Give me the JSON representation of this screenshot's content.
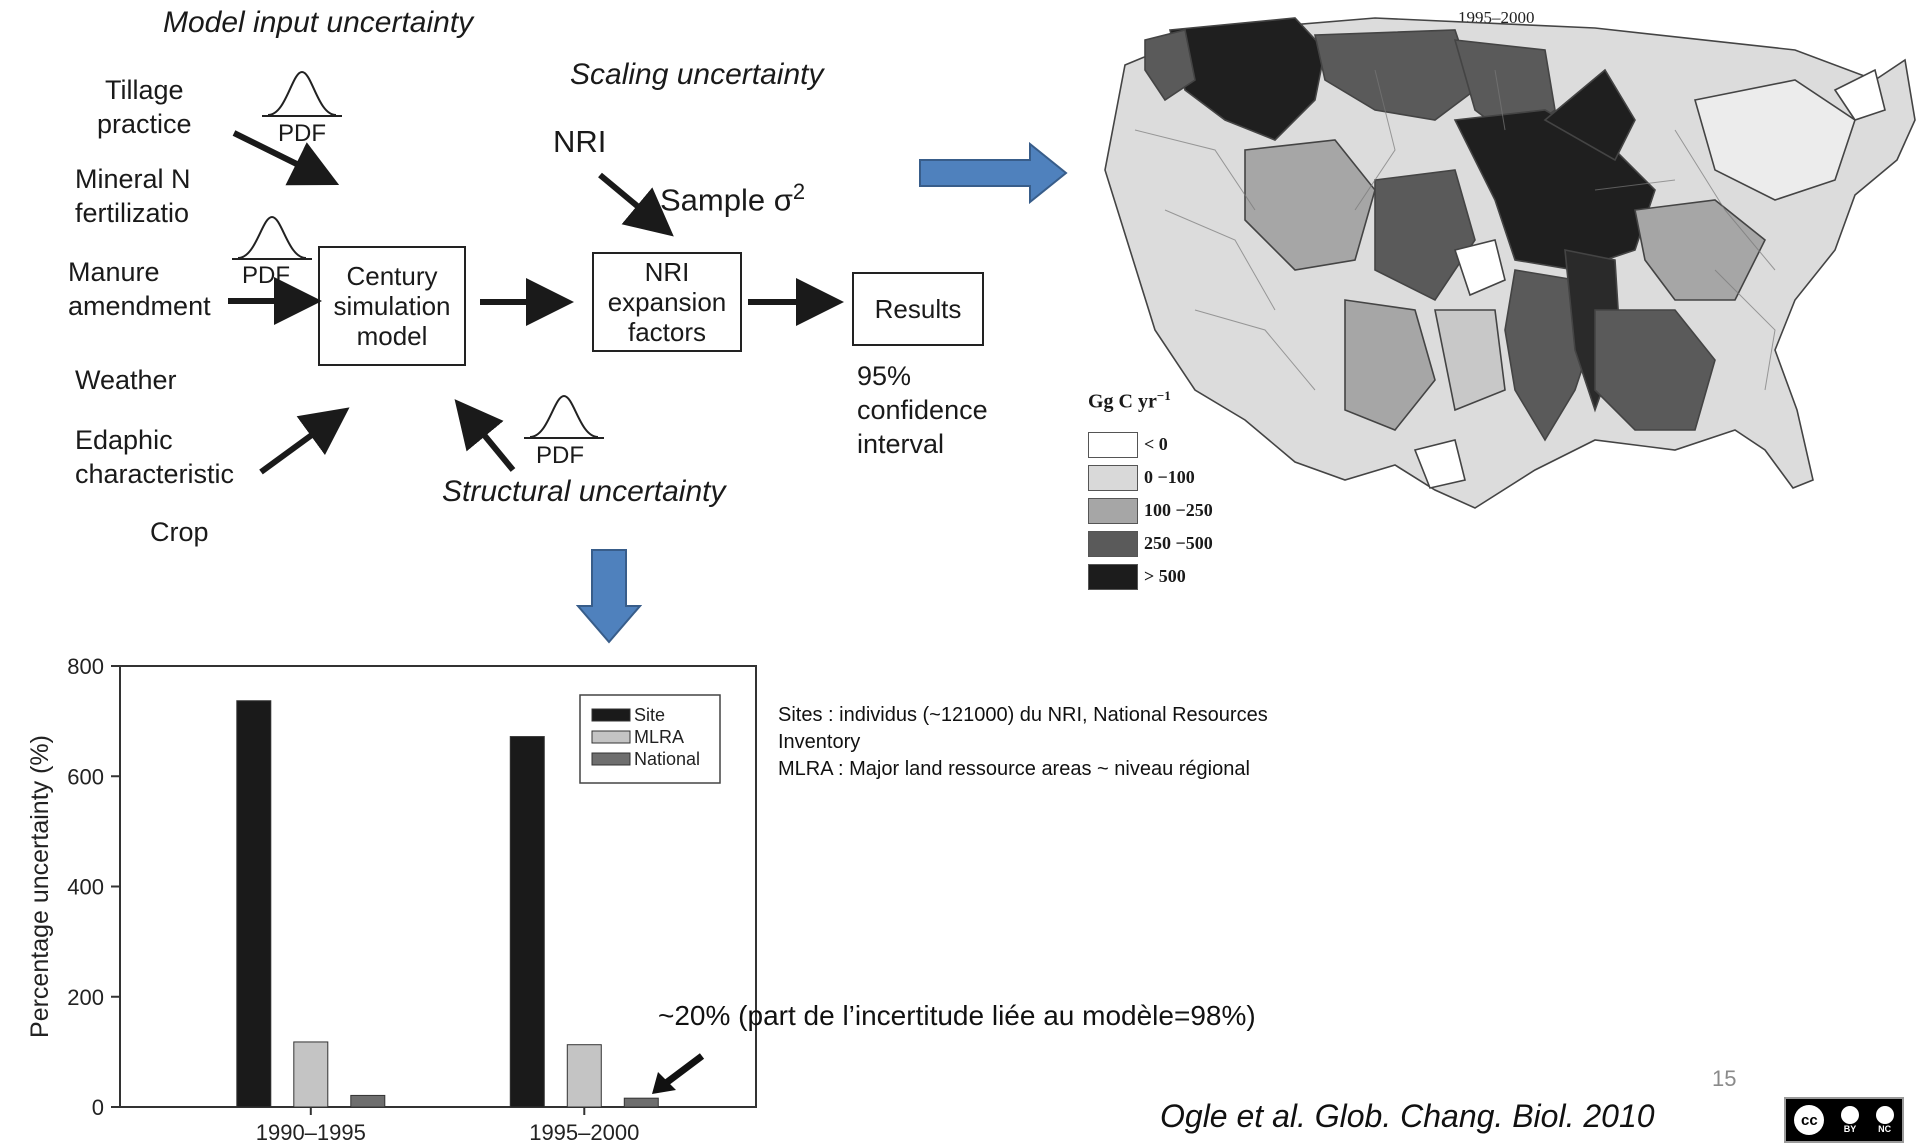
{
  "flowchart": {
    "model_input_title": "Model input uncertainty",
    "scaling_title": "Scaling uncertainty",
    "structural_title": "Structural uncertainty",
    "inputs": [
      "Tillage\npractice",
      "Mineral N\nfertilizatio",
      "Manure\namendment",
      "Weather",
      "Edaphic\ncharacteristic",
      "Crop"
    ],
    "pdf_label": "PDF",
    "century_box": "Century\nsimulation\nmodel",
    "nri_label": "NRI",
    "sample_label": "Sample σ",
    "sample_superscript": "2",
    "nri_box": "NRI\nexpansion\nfactors",
    "results_box": "Results",
    "results_note": "95%\nconfidence\ninterval"
  },
  "map": {
    "title": "1995–2000",
    "legend_title": "Gg C yr",
    "legend_title_sup": "−1",
    "legend": [
      {
        "label": "< 0",
        "color": "#ffffff"
      },
      {
        "label": "0 −100",
        "color": "#d9d9d9"
      },
      {
        "label": "100 −250",
        "color": "#a6a6a6"
      },
      {
        "label": "250 −500",
        "color": "#5a5a5a"
      },
      {
        "label": "> 500",
        "color": "#1c1c1c"
      }
    ]
  },
  "chart_data": {
    "type": "bar",
    "categories": [
      "1990–1995",
      "1995–2000"
    ],
    "series": [
      {
        "name": "Site",
        "values": [
          737,
          672
        ],
        "color": "#1a1a1a"
      },
      {
        "name": "MLRA",
        "values": [
          118,
          113
        ],
        "color": "#c4c4c4"
      },
      {
        "name": "National",
        "values": [
          21,
          16
        ],
        "color": "#6e6e6e"
      }
    ],
    "ylabel": "Percentage uncertainty (%)",
    "xlabel": "",
    "ylim": [
      0,
      800
    ],
    "yticks": [
      0,
      200,
      400,
      600,
      800
    ],
    "legend_position": "top-right"
  },
  "notes": {
    "definitions": "Sites : individus (~121000) du NRI, National Resources\nInventory\nMLRA : Major land ressource areas ~ niveau régional",
    "annotation": "~20% (part de l’incertitude liée au modèle=98%)",
    "citation": "Ogle et al. Glob. Chang. Biol.  2010",
    "page_number": "15",
    "license_cc": "cc",
    "license_by": "BY",
    "license_nc": "NC"
  },
  "colors": {
    "arrow_blue": "#4f81bd",
    "arrow_blue_border": "#385d8a"
  }
}
